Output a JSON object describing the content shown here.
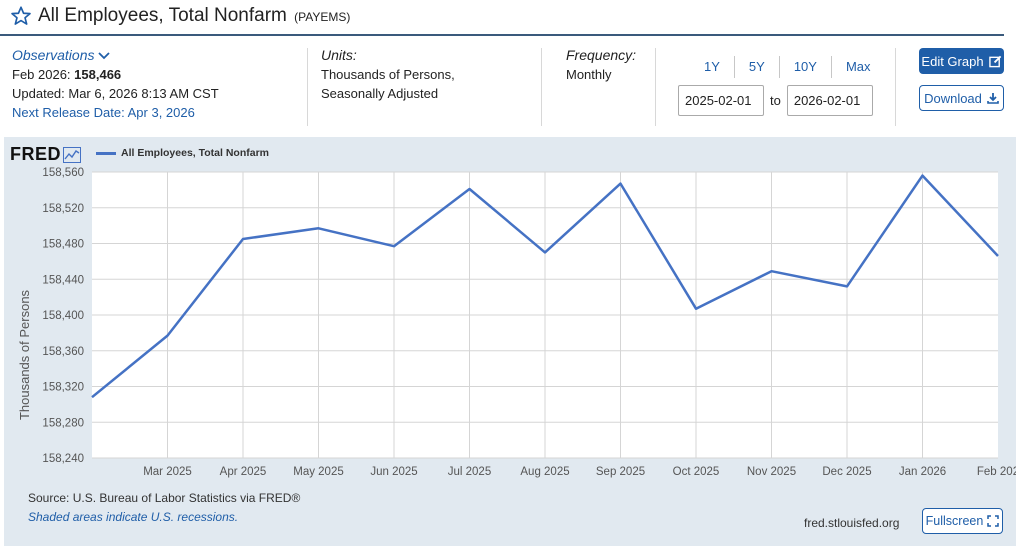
{
  "header": {
    "title": "All Employees, Total Nonfarm",
    "series_code": "(PAYEMS)"
  },
  "observations": {
    "label": "Observations",
    "latest_period": "Feb 2026:",
    "latest_value": "158,466",
    "updated": "Updated: Mar 6, 2026 8:13 AM CST",
    "next_release": "Next Release Date: Apr 3, 2026"
  },
  "units": {
    "label": "Units:",
    "line1": "Thousands of Persons,",
    "line2": "Seasonally Adjusted"
  },
  "frequency": {
    "label": "Frequency:",
    "value": "Monthly"
  },
  "range_buttons": [
    "1Y",
    "5Y",
    "10Y",
    "Max"
  ],
  "date_range": {
    "start": "2025-02-01",
    "to_label": "to",
    "end": "2026-02-01"
  },
  "buttons": {
    "edit_graph": "Edit Graph",
    "download": "Download",
    "fullscreen": "Fullscreen"
  },
  "panel": {
    "logo": "FRED",
    "source": "Source: U.S. Bureau of Labor Statistics via FRED®",
    "recession_note": "Shaded areas indicate U.S. recessions.",
    "site": "fred.stlouisfed.org"
  },
  "colors": {
    "line": "#4572c4",
    "accent": "#1f5ea8",
    "panel_bg": "#e1e9f0"
  },
  "chart_data": {
    "type": "line",
    "title": "",
    "ylabel": "Thousands of Persons",
    "xlabel": "",
    "legend_position": "top-left",
    "grid": true,
    "ylim": [
      158240,
      158560
    ],
    "yticks": [
      158240,
      158280,
      158320,
      158360,
      158400,
      158440,
      158480,
      158520,
      158560
    ],
    "ytick_labels": [
      "158,240",
      "158,280",
      "158,320",
      "158,360",
      "158,400",
      "158,440",
      "158,480",
      "158,520",
      "158,560"
    ],
    "xtick_labels": [
      "Mar 2025",
      "Apr 2025",
      "May 2025",
      "Jun 2025",
      "Jul 2025",
      "Aug 2025",
      "Sep 2025",
      "Oct 2025",
      "Nov 2025",
      "Dec 2025",
      "Jan 2026",
      "Feb 202"
    ],
    "x": [
      "2025-02",
      "2025-03",
      "2025-04",
      "2025-05",
      "2025-06",
      "2025-07",
      "2025-08",
      "2025-09",
      "2025-10",
      "2025-11",
      "2025-12",
      "2026-01",
      "2026-02"
    ],
    "series": [
      {
        "name": "All Employees, Total Nonfarm",
        "values": [
          158308,
          158377,
          158485,
          158497,
          158477,
          158541,
          158470,
          158547,
          158407,
          158449,
          158432,
          158556,
          158466
        ]
      }
    ]
  }
}
